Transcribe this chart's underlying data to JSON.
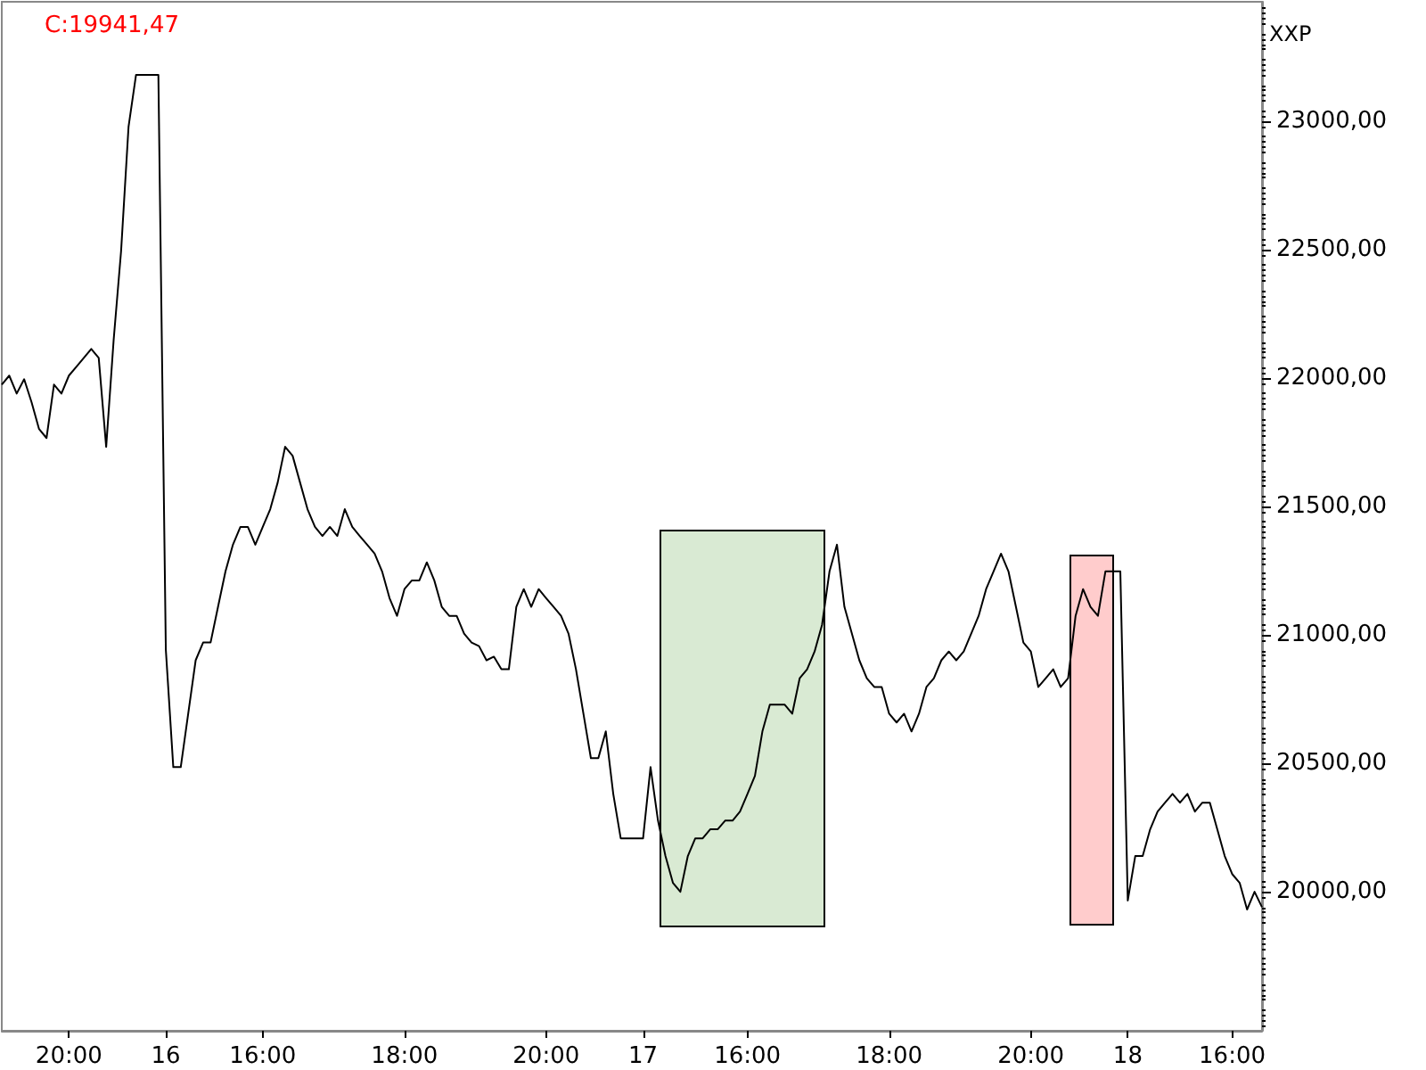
{
  "chart_data": {
    "type": "line",
    "title": "C:19941,47",
    "ylabel": "XXP",
    "categories": [
      null,
      null,
      null,
      null,
      null,
      null,
      null,
      null,
      null,
      "20:00",
      null,
      null,
      null,
      null,
      null,
      null,
      null,
      null,
      null,
      null,
      null,
      null,
      "16",
      null,
      null,
      null,
      null,
      null,
      null,
      null,
      null,
      null,
      null,
      null,
      null,
      "16:00",
      null,
      null,
      null,
      null,
      null,
      null,
      null,
      null,
      null,
      null,
      null,
      null,
      null,
      null,
      null,
      null,
      null,
      null,
      "18:00",
      null,
      null,
      null,
      null,
      null,
      null,
      null,
      null,
      null,
      null,
      null,
      null,
      null,
      null,
      null,
      null,
      null,
      null,
      "20:00",
      null,
      null,
      null,
      null,
      null,
      null,
      null,
      null,
      null,
      null,
      null,
      null,
      "17",
      null,
      null,
      null,
      null,
      null,
      null,
      null,
      null,
      null,
      null,
      null,
      null,
      null,
      "16:00",
      null,
      null,
      null,
      null,
      null,
      null,
      null,
      null,
      null,
      null,
      null,
      null,
      null,
      null,
      null,
      null,
      null,
      null,
      "18:00",
      null,
      null,
      null,
      null,
      null,
      null,
      null,
      null,
      null,
      null,
      null,
      null,
      null,
      null,
      null,
      null,
      null,
      null,
      "20:00",
      null,
      null,
      null,
      null,
      null,
      null,
      null,
      null,
      null,
      null,
      null,
      null,
      "18",
      null,
      null,
      null,
      null,
      null,
      null,
      null,
      null,
      null,
      null,
      null,
      null,
      null,
      "16:00",
      null,
      null,
      null,
      null
    ],
    "series": [
      {
        "color": "#000000",
        "values": [
          21975,
          22010,
          21940,
          21996,
          21906,
          21802,
          21767,
          21975,
          21940,
          22010,
          22044,
          22079,
          22114,
          22079,
          21733,
          22148,
          22495,
          22979,
          23180,
          23180,
          23180,
          23180,
          20943,
          20486,
          20486,
          20694,
          20902,
          20971,
          20971,
          21110,
          21248,
          21352,
          21421,
          21421,
          21352,
          21421,
          21490,
          21594,
          21733,
          21698,
          21594,
          21490,
          21421,
          21386,
          21421,
          21386,
          21490,
          21421,
          21386,
          21352,
          21317,
          21248,
          21144,
          21075,
          21179,
          21213,
          21213,
          21283,
          21213,
          21110,
          21075,
          21075,
          21006,
          20971,
          20957,
          20902,
          20916,
          20867,
          20867,
          21110,
          21179,
          21110,
          21179,
          21144,
          21110,
          21075,
          21006,
          20867,
          20694,
          20521,
          20521,
          20625,
          20382,
          20209,
          20209,
          20209,
          20209,
          20486,
          20278,
          20140,
          20036,
          20001,
          20140,
          20209,
          20209,
          20244,
          20244,
          20278,
          20278,
          20313,
          20382,
          20452,
          20625,
          20729,
          20729,
          20729,
          20694,
          20832,
          20867,
          20936,
          21040,
          21248,
          21352,
          21110,
          21006,
          20902,
          20832,
          20798,
          20798,
          20694,
          20660,
          20694,
          20625,
          20694,
          20798,
          20832,
          20902,
          20936,
          20902,
          20936,
          21006,
          21075,
          21179,
          21248,
          21317,
          21248,
          21110,
          20971,
          20936,
          20798,
          20832,
          20867,
          20798,
          20832,
          21075,
          21179,
          21110,
          21075,
          21248,
          21248,
          21248,
          19967,
          20140,
          20140,
          20244,
          20313,
          20348,
          20382,
          20348,
          20382,
          20313,
          20348,
          20348,
          20244,
          20140,
          20070,
          20036,
          19932,
          20001,
          19941
        ]
      }
    ],
    "ylim": [
      19460,
      23465
    ],
    "yticks": [
      {
        "value": 20000,
        "label": "20000,00"
      },
      {
        "value": 20500,
        "label": "20500,00"
      },
      {
        "value": 21000,
        "label": "21000,00"
      },
      {
        "value": 21500,
        "label": "21500,00"
      },
      {
        "value": 22000,
        "label": "22000,00"
      },
      {
        "value": 22500,
        "label": "22500,00"
      },
      {
        "value": 23000,
        "label": "23000,00"
      }
    ],
    "grid": false
  }
}
